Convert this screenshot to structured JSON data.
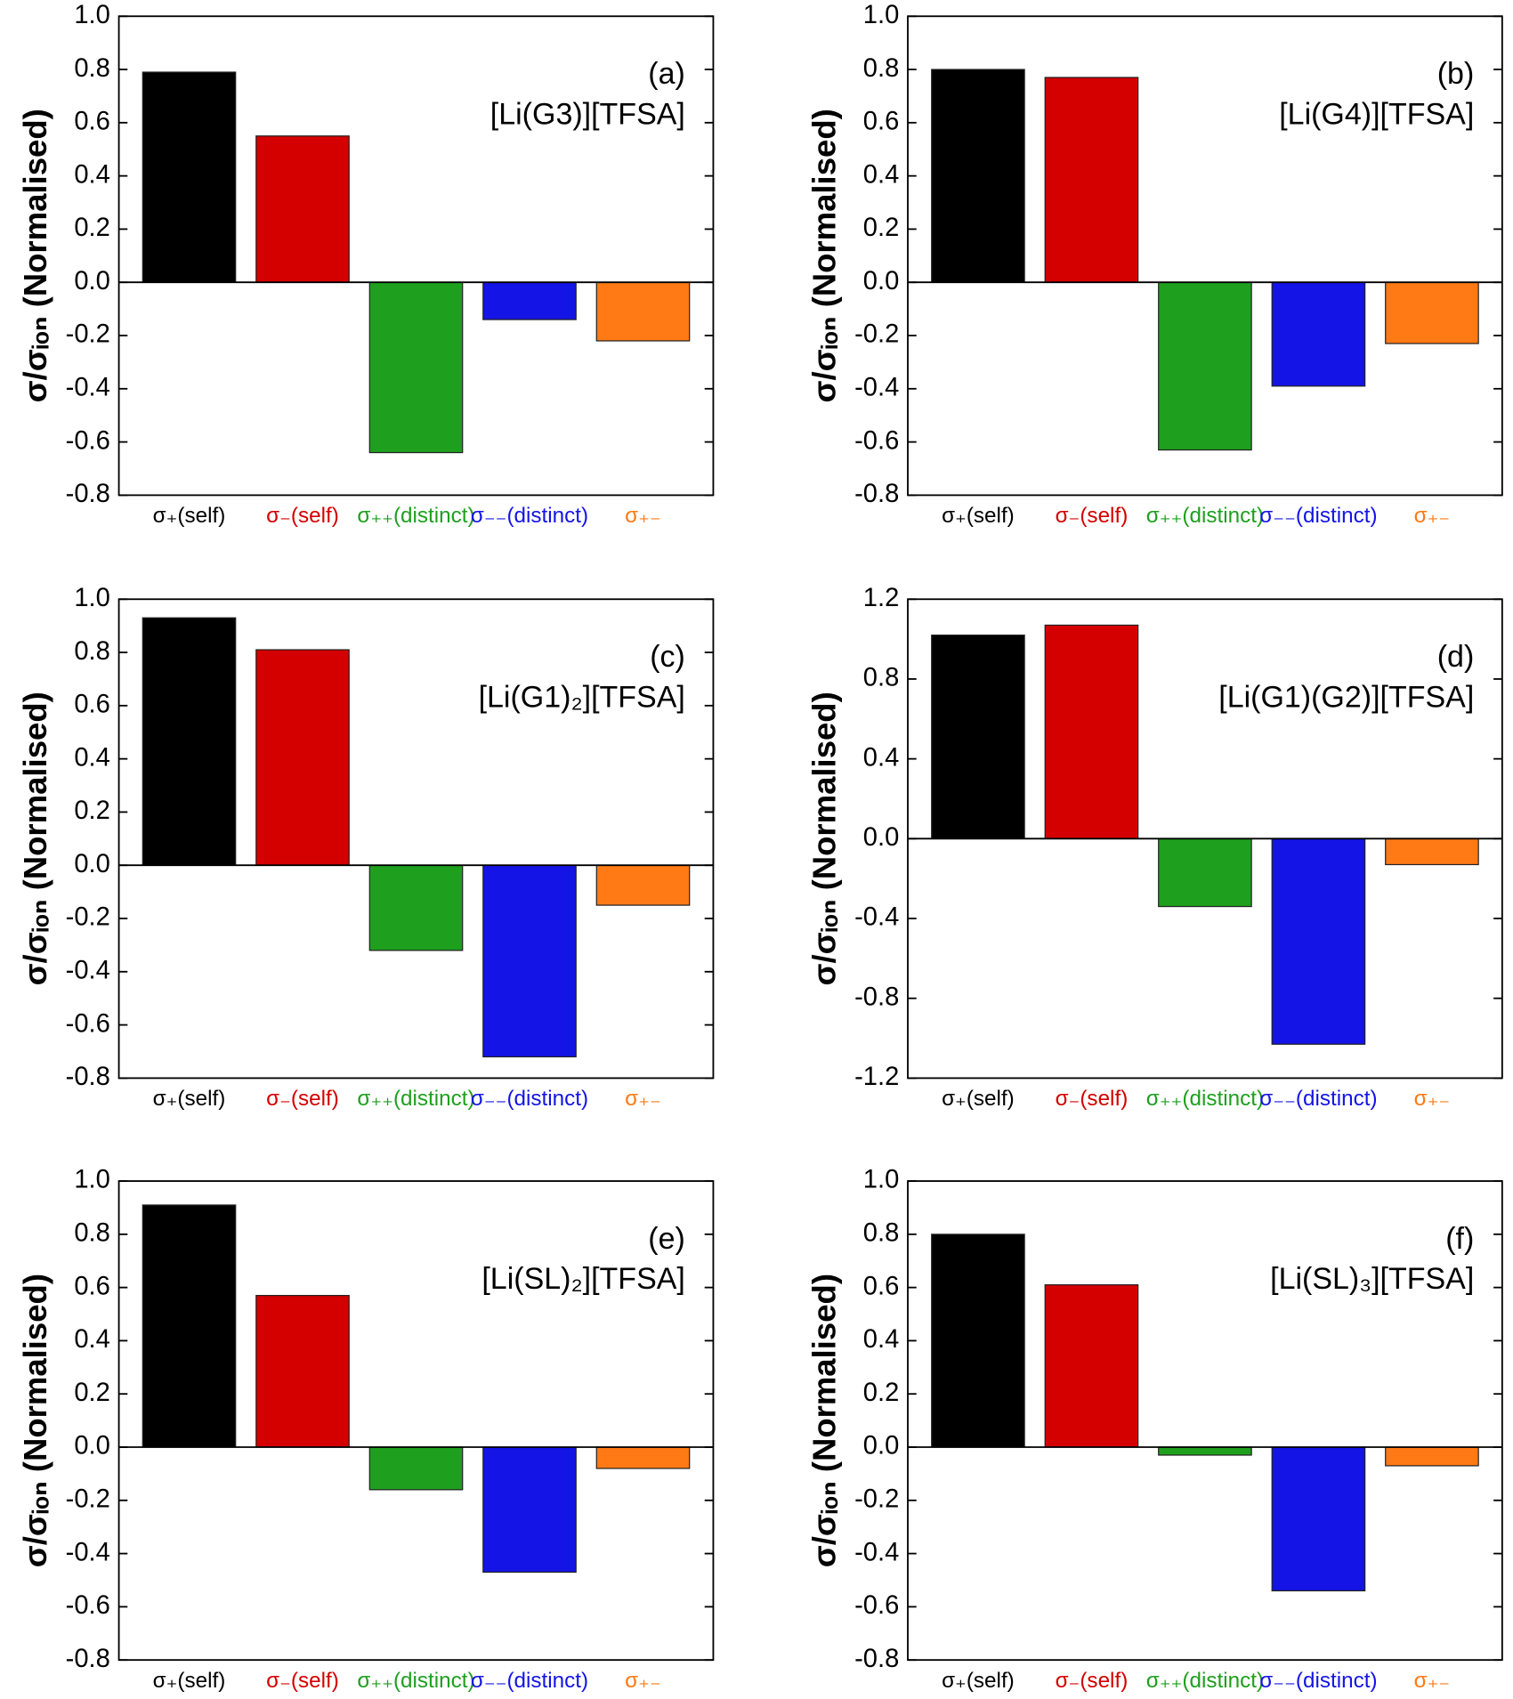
{
  "chart_data": [
    {
      "type": "bar",
      "title": "(a)",
      "annotation": "[Li(G3)][TFSA]",
      "y_label": "σ/σᵢₒₙ (Normalised)",
      "categories": [
        "σ₊(self)",
        "σ₋(self)",
        "σ₊₊(distinct)",
        "σ₋₋(distinct)",
        "σ₊₋"
      ],
      "values": [
        0.79,
        0.55,
        -0.64,
        -0.14,
        -0.22
      ],
      "colors": [
        "#000000",
        "#d40000",
        "#1ea01e",
        "#1414e6",
        "#ff7a14"
      ],
      "ylim": [
        -0.8,
        1.0
      ],
      "yticks": [
        -0.8,
        -0.6,
        -0.4,
        -0.2,
        {
          "value": 0,
          "label": "0.0"
        },
        0.2,
        0.4,
        0.6,
        0.8,
        {
          "value": 1,
          "label": "1.0"
        }
      ]
    },
    {
      "type": "bar",
      "title": "(b)",
      "annotation": "[Li(G4)][TFSA]",
      "y_label": "σ/σᵢₒₙ (Normalised)",
      "categories": [
        "σ₊(self)",
        "σ₋(self)",
        "σ₊₊(distinct)",
        "σ₋₋(distinct)",
        "σ₊₋"
      ],
      "values": [
        0.8,
        0.77,
        -0.63,
        -0.39,
        -0.23
      ],
      "colors": [
        "#000000",
        "#d40000",
        "#1ea01e",
        "#1414e6",
        "#ff7a14"
      ],
      "ylim": [
        -0.8,
        1.0
      ],
      "yticks": [
        -0.8,
        -0.6,
        -0.4,
        -0.2,
        {
          "value": 0,
          "label": "0.0"
        },
        0.2,
        0.4,
        0.6,
        0.8,
        {
          "value": 1,
          "label": "1.0"
        }
      ]
    },
    {
      "type": "bar",
      "title": "(c)",
      "annotation": "[Li(G1)₂][TFSA]",
      "y_label": "σ/σᵢₒₙ (Normalised)",
      "categories": [
        "σ₊(self)",
        "σ₋(self)",
        "σ₊₊(distinct)",
        "σ₋₋(distinct)",
        "σ₊₋"
      ],
      "values": [
        0.93,
        0.81,
        -0.32,
        -0.72,
        -0.15
      ],
      "colors": [
        "#000000",
        "#d40000",
        "#1ea01e",
        "#1414e6",
        "#ff7a14"
      ],
      "ylim": [
        -0.8,
        1.0
      ],
      "yticks": [
        -0.8,
        -0.6,
        -0.4,
        -0.2,
        {
          "value": 0,
          "label": "0.0"
        },
        0.2,
        0.4,
        0.6,
        0.8,
        {
          "value": 1,
          "label": "1.0"
        }
      ]
    },
    {
      "type": "bar",
      "title": "(d)",
      "annotation": "[Li(G1)(G2)][TFSA]",
      "y_label": "σ/σᵢₒₙ (Normalised)",
      "categories": [
        "σ₊(self)",
        "σ₋(self)",
        "σ₊₊(distinct)",
        "σ₋₋(distinct)",
        "σ₊₋"
      ],
      "values": [
        1.02,
        1.07,
        -0.34,
        -1.03,
        -0.13
      ],
      "colors": [
        "#000000",
        "#d40000",
        "#1ea01e",
        "#1414e6",
        "#ff7a14"
      ],
      "ylim": [
        -1.2,
        1.2
      ],
      "yticks": [
        -1.2,
        -0.8,
        -0.4,
        {
          "value": 0,
          "label": "0.0"
        },
        0.4,
        0.8,
        1.2
      ]
    },
    {
      "type": "bar",
      "title": "(e)",
      "annotation": "[Li(SL)₂][TFSA]",
      "y_label": "σ/σᵢₒₙ (Normalised)",
      "categories": [
        "σ₊(self)",
        "σ₋(self)",
        "σ₊₊(distinct)",
        "σ₋₋(distinct)",
        "σ₊₋"
      ],
      "values": [
        0.91,
        0.57,
        -0.16,
        -0.47,
        -0.08
      ],
      "colors": [
        "#000000",
        "#d40000",
        "#1ea01e",
        "#1414e6",
        "#ff7a14"
      ],
      "ylim": [
        -0.8,
        1.0
      ],
      "yticks": [
        -0.8,
        -0.6,
        -0.4,
        -0.2,
        {
          "value": 0,
          "label": "0.0"
        },
        0.2,
        0.4,
        0.6,
        0.8,
        {
          "value": 1,
          "label": "1.0"
        }
      ]
    },
    {
      "type": "bar",
      "title": "(f)",
      "annotation": "[Li(SL)₃][TFSA]",
      "y_label": "σ/σᵢₒₙ (Normalised)",
      "categories": [
        "σ₊(self)",
        "σ₋(self)",
        "σ₊₊(distinct)",
        "σ₋₋(distinct)",
        "σ₊₋"
      ],
      "values": [
        0.8,
        0.61,
        -0.03,
        -0.54,
        -0.07
      ],
      "colors": [
        "#000000",
        "#d40000",
        "#1ea01e",
        "#1414e6",
        "#ff7a14"
      ],
      "ylim": [
        -0.8,
        1.0
      ],
      "yticks": [
        -0.8,
        -0.6,
        -0.4,
        -0.2,
        {
          "value": 0,
          "label": "0.0"
        },
        0.2,
        0.4,
        0.6,
        0.8,
        {
          "value": 1,
          "label": "1.0"
        }
      ]
    }
  ]
}
